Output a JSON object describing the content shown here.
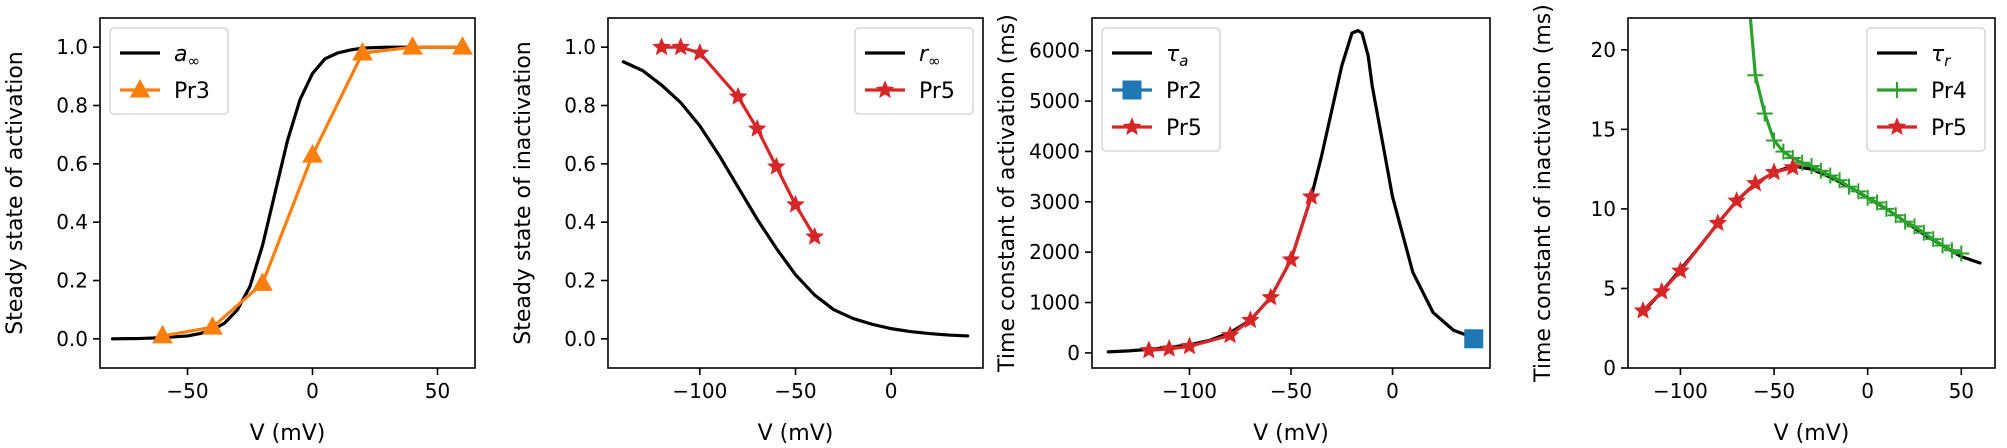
{
  "chart_data": [
    {
      "type": "line",
      "xlabel": "V (mV)",
      "ylabel": "Steady state of activation",
      "xlim": [
        -85,
        65
      ],
      "ylim": [
        -0.1,
        1.1
      ],
      "xticks": [
        -50,
        0,
        50
      ],
      "yticks": [
        0.0,
        0.2,
        0.4,
        0.6,
        0.8,
        1.0
      ],
      "legend_position": "upper-left",
      "series": [
        {
          "name": "a∞",
          "name_main": "a",
          "name_sub": "∞",
          "color": "#000000",
          "marker": "none",
          "x": [
            -80,
            -70,
            -60,
            -50,
            -45,
            -40,
            -35,
            -30,
            -25,
            -20,
            -15,
            -10,
            -5,
            0,
            5,
            10,
            15,
            20,
            30,
            40,
            50,
            60
          ],
          "y": [
            0.0,
            0.001,
            0.004,
            0.01,
            0.018,
            0.03,
            0.055,
            0.1,
            0.18,
            0.32,
            0.5,
            0.68,
            0.82,
            0.91,
            0.96,
            0.98,
            0.99,
            0.997,
            1.0,
            1.0,
            1.0,
            1.0
          ]
        },
        {
          "name": "Pr3",
          "color": "#ff7f0e",
          "marker": "triangle",
          "x": [
            -60,
            -40,
            -20,
            0,
            20,
            40,
            60
          ],
          "y": [
            0.01,
            0.04,
            0.19,
            0.63,
            0.98,
            1.0,
            1.0
          ]
        }
      ]
    },
    {
      "type": "line",
      "xlabel": "V (mV)",
      "ylabel": "Steady state of inactivation",
      "xlim": [
        -148,
        48
      ],
      "ylim": [
        -0.1,
        1.1
      ],
      "xticks": [
        -100,
        -50,
        0
      ],
      "yticks": [
        0.0,
        0.2,
        0.4,
        0.6,
        0.8,
        1.0
      ],
      "legend_position": "upper-right",
      "series": [
        {
          "name": "r∞",
          "name_main": "r",
          "name_sub": "∞",
          "color": "#000000",
          "marker": "none",
          "x": [
            -140,
            -130,
            -120,
            -110,
            -100,
            -90,
            -80,
            -70,
            -60,
            -50,
            -40,
            -30,
            -20,
            -10,
            0,
            10,
            20,
            30,
            40
          ],
          "y": [
            0.95,
            0.92,
            0.87,
            0.81,
            0.73,
            0.63,
            0.52,
            0.41,
            0.31,
            0.22,
            0.15,
            0.1,
            0.07,
            0.05,
            0.035,
            0.025,
            0.018,
            0.013,
            0.01
          ]
        },
        {
          "name": "Pr5",
          "color": "#d62728",
          "marker": "star",
          "x": [
            -120,
            -110,
            -100,
            -80,
            -70,
            -60,
            -50,
            -40
          ],
          "y": [
            1.0,
            1.0,
            0.98,
            0.83,
            0.72,
            0.59,
            0.46,
            0.35
          ]
        }
      ]
    },
    {
      "type": "line",
      "xlabel": "V (mV)",
      "ylabel": "Time constant of activation (ms)",
      "xlim": [
        -148,
        48
      ],
      "ylim": [
        -300,
        6650
      ],
      "xticks": [
        -100,
        -50,
        0
      ],
      "yticks": [
        0,
        1000,
        2000,
        3000,
        4000,
        5000,
        6000
      ],
      "legend_position": "upper-left",
      "series": [
        {
          "name": "τa",
          "name_main": "τ",
          "name_sub": "a",
          "color": "#000000",
          "marker": "none",
          "x": [
            -140,
            -130,
            -120,
            -110,
            -100,
            -90,
            -80,
            -70,
            -60,
            -50,
            -40,
            -35,
            -30,
            -25,
            -20,
            -17,
            -15,
            -12,
            -10,
            -5,
            0,
            10,
            20,
            30,
            40
          ],
          "y": [
            20,
            40,
            70,
            110,
            160,
            250,
            400,
            650,
            1100,
            1850,
            3100,
            3900,
            4800,
            5700,
            6350,
            6400,
            6350,
            5900,
            5300,
            4200,
            3100,
            1600,
            800,
            450,
            300
          ]
        },
        {
          "name": "Pr2",
          "color": "#1f77b4",
          "marker": "square",
          "x": [
            40
          ],
          "y": [
            280
          ]
        },
        {
          "name": "Pr5",
          "color": "#d62728",
          "marker": "star",
          "x": [
            -120,
            -110,
            -100,
            -80,
            -70,
            -60,
            -50,
            -40
          ],
          "y": [
            50,
            80,
            130,
            350,
            650,
            1100,
            1850,
            3100
          ]
        }
      ]
    },
    {
      "type": "line",
      "xlabel": "V (mV)",
      "ylabel": "Time constant of inactivation (ms)",
      "xlim": [
        -128,
        68
      ],
      "ylim": [
        0,
        22
      ],
      "xticks": [
        -100,
        -50,
        0,
        50
      ],
      "yticks": [
        0,
        5,
        10,
        15,
        20
      ],
      "legend_position": "upper-right",
      "series": [
        {
          "name": "τr",
          "name_main": "τ",
          "name_sub": "r",
          "color": "#000000",
          "marker": "none",
          "x": [
            -120,
            -110,
            -100,
            -90,
            -80,
            -70,
            -60,
            -50,
            -40,
            -30,
            -20,
            -10,
            0,
            10,
            20,
            30,
            40,
            50,
            60
          ],
          "y": [
            3.5,
            4.8,
            6.2,
            7.6,
            9.1,
            10.5,
            11.6,
            12.3,
            12.7,
            12.5,
            12.0,
            11.4,
            10.7,
            10.0,
            9.2,
            8.4,
            7.7,
            7.0,
            6.6
          ]
        },
        {
          "name": "Pr4",
          "color": "#2ca02c",
          "marker": "plus",
          "x": [
            -63,
            -60,
            -55,
            -50,
            -45,
            -40,
            -35,
            -30,
            -25,
            -20,
            -15,
            -10,
            -5,
            0,
            5,
            10,
            15,
            20,
            25,
            30,
            35,
            40,
            45,
            50
          ],
          "y": [
            22.5,
            18.4,
            16.0,
            14.3,
            13.6,
            13.2,
            12.9,
            12.7,
            12.4,
            12.1,
            11.8,
            11.4,
            11.1,
            10.7,
            10.4,
            10.0,
            9.6,
            9.2,
            8.9,
            8.5,
            8.1,
            7.7,
            7.4,
            7.2
          ]
        },
        {
          "name": "Pr5",
          "color": "#d62728",
          "marker": "star",
          "x": [
            -120,
            -110,
            -100,
            -80,
            -70,
            -60,
            -50,
            -40
          ],
          "y": [
            3.6,
            4.8,
            6.1,
            9.1,
            10.5,
            11.6,
            12.3,
            12.6
          ]
        }
      ]
    }
  ]
}
